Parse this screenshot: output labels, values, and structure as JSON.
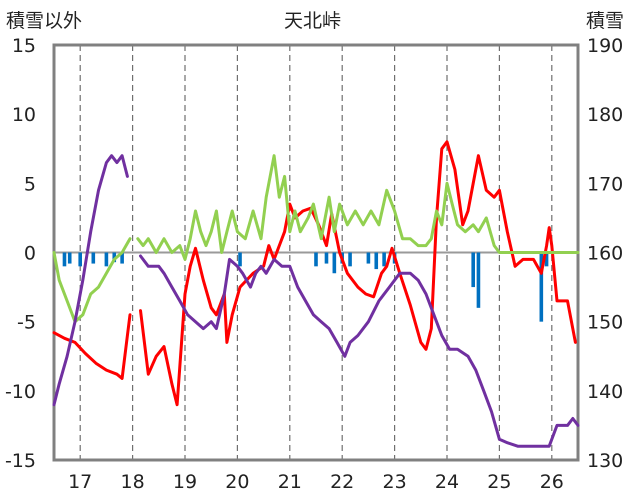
{
  "chart_data": {
    "type": "line",
    "title": "天北峠",
    "y_left_label": "積雪以外",
    "y_right_label": "積雪",
    "x_ticks": [
      "17",
      "18",
      "19",
      "20",
      "21",
      "22",
      "23",
      "24",
      "25",
      "26"
    ],
    "x_range": [
      16.5,
      26.5
    ],
    "y_left_ticks": [
      "15",
      "10",
      "5",
      "0",
      "-5",
      "-10",
      "-15"
    ],
    "y_left_range": [
      -15,
      15
    ],
    "y_right_ticks": [
      "190",
      "180",
      "170",
      "160",
      "150",
      "140",
      "130"
    ],
    "y_right_range": [
      130,
      190
    ],
    "grid": {
      "vertical": "dashed",
      "horizontal": "none"
    },
    "colors": {
      "red": "#ff0000",
      "green": "#92d050",
      "purple": "#7030a0",
      "blue": "#0070c0",
      "frame": "#808080"
    },
    "series": [
      {
        "color": "red",
        "axis": "left",
        "points": [
          [
            16.5,
            -5.8
          ],
          [
            16.7,
            -6.2
          ],
          [
            16.9,
            -6.5
          ],
          [
            17.1,
            -7.3
          ],
          [
            17.3,
            -8.0
          ],
          [
            17.5,
            -8.5
          ],
          [
            17.7,
            -8.8
          ],
          [
            17.8,
            -9.1
          ],
          [
            17.9,
            -6.0
          ],
          [
            17.95,
            -4.5
          ],
          null,
          [
            18.15,
            -4.2
          ],
          [
            18.3,
            -8.8
          ],
          [
            18.45,
            -7.5
          ],
          [
            18.6,
            -6.8
          ],
          [
            18.75,
            -9.5
          ],
          [
            18.85,
            -11.0
          ],
          [
            19.0,
            -3.0
          ],
          [
            19.1,
            -1.0
          ],
          [
            19.2,
            0.3
          ],
          [
            19.35,
            -2.0
          ],
          [
            19.5,
            -4.0
          ],
          [
            19.6,
            -4.5
          ],
          [
            19.75,
            -3.0
          ],
          [
            19.8,
            -6.5
          ],
          [
            19.9,
            -4.5
          ],
          [
            20.05,
            -2.5
          ],
          [
            20.3,
            -1.5
          ],
          [
            20.5,
            -1.0
          ],
          [
            20.6,
            0.5
          ],
          [
            20.7,
            -0.5
          ],
          [
            20.8,
            0.5
          ],
          [
            20.9,
            1.5
          ],
          [
            21.0,
            3.5
          ],
          [
            21.1,
            2.5
          ],
          [
            21.25,
            3.0
          ],
          [
            21.4,
            3.2
          ],
          [
            21.55,
            2.0
          ],
          [
            21.7,
            0.5
          ],
          [
            21.8,
            2.8
          ],
          [
            21.95,
            0.0
          ],
          [
            22.1,
            -1.5
          ],
          [
            22.3,
            -2.5
          ],
          [
            22.45,
            -3.0
          ],
          [
            22.6,
            -3.2
          ],
          [
            22.75,
            -1.5
          ],
          [
            22.85,
            -1.0
          ],
          [
            22.95,
            0.3
          ],
          [
            23.1,
            -1.5
          ],
          [
            23.3,
            -3.8
          ],
          [
            23.5,
            -6.5
          ],
          [
            23.6,
            -7.0
          ],
          [
            23.7,
            -5.5
          ],
          [
            23.8,
            2.5
          ],
          [
            23.9,
            7.5
          ],
          [
            24.0,
            8.0
          ],
          [
            24.15,
            6.0
          ],
          [
            24.3,
            2.0
          ],
          [
            24.4,
            3.0
          ],
          [
            24.5,
            5.0
          ],
          [
            24.6,
            7.0
          ],
          [
            24.75,
            4.5
          ],
          [
            24.9,
            4.0
          ],
          [
            25.0,
            4.5
          ],
          [
            25.15,
            1.5
          ],
          [
            25.3,
            -1.0
          ],
          [
            25.45,
            -0.5
          ],
          [
            25.65,
            -0.5
          ],
          [
            25.8,
            -1.5
          ],
          [
            25.9,
            0.5
          ],
          [
            25.95,
            1.8
          ],
          [
            26.0,
            0.5
          ],
          [
            26.1,
            -3.5
          ],
          [
            26.3,
            -3.5
          ],
          [
            26.45,
            -6.5
          ]
        ]
      },
      {
        "color": "green",
        "axis": "left",
        "points": [
          [
            16.5,
            0.0
          ],
          [
            16.6,
            -2.0
          ],
          [
            16.75,
            -3.5
          ],
          [
            16.9,
            -5.0
          ],
          [
            17.05,
            -4.5
          ],
          [
            17.2,
            -3.0
          ],
          [
            17.35,
            -2.5
          ],
          [
            17.5,
            -1.5
          ],
          [
            17.65,
            -0.5
          ],
          [
            17.8,
            0.0
          ],
          [
            17.95,
            1.0
          ],
          null,
          [
            18.1,
            1.0
          ],
          [
            18.2,
            0.5
          ],
          [
            18.3,
            1.0
          ],
          [
            18.45,
            0.0
          ],
          [
            18.6,
            1.0
          ],
          [
            18.75,
            0.0
          ],
          [
            18.9,
            0.5
          ],
          [
            19.0,
            -0.5
          ],
          [
            19.1,
            1.0
          ],
          [
            19.2,
            3.0
          ],
          [
            19.3,
            1.5
          ],
          [
            19.4,
            0.5
          ],
          [
            19.5,
            1.5
          ],
          [
            19.6,
            3.0
          ],
          [
            19.7,
            0.0
          ],
          [
            19.8,
            1.5
          ],
          [
            19.9,
            3.0
          ],
          [
            20.0,
            1.5
          ],
          [
            20.15,
            1.0
          ],
          [
            20.3,
            3.0
          ],
          [
            20.45,
            1.0
          ],
          [
            20.55,
            4.0
          ],
          [
            20.7,
            7.0
          ],
          [
            20.8,
            4.0
          ],
          [
            20.9,
            5.5
          ],
          [
            21.0,
            1.5
          ],
          [
            21.1,
            3.0
          ],
          [
            21.2,
            1.5
          ],
          [
            21.35,
            2.5
          ],
          [
            21.45,
            3.5
          ],
          [
            21.6,
            1.0
          ],
          [
            21.75,
            4.0
          ],
          [
            21.85,
            1.5
          ],
          [
            21.95,
            3.5
          ],
          [
            22.1,
            2.0
          ],
          [
            22.25,
            3.0
          ],
          [
            22.4,
            2.0
          ],
          [
            22.55,
            3.0
          ],
          [
            22.7,
            2.0
          ],
          [
            22.85,
            4.5
          ],
          [
            23.0,
            3.0
          ],
          [
            23.15,
            1.0
          ],
          [
            23.3,
            1.0
          ],
          [
            23.45,
            0.5
          ],
          [
            23.6,
            0.5
          ],
          [
            23.7,
            1.0
          ],
          [
            23.8,
            3.0
          ],
          [
            23.9,
            2.0
          ],
          [
            24.0,
            5.0
          ],
          [
            24.1,
            3.5
          ],
          [
            24.2,
            2.0
          ],
          [
            24.35,
            1.5
          ],
          [
            24.5,
            2.0
          ],
          [
            24.6,
            1.5
          ],
          [
            24.75,
            2.5
          ],
          [
            24.9,
            0.5
          ],
          [
            25.0,
            0.0
          ],
          [
            25.15,
            0.0
          ],
          [
            25.3,
            0.0
          ],
          [
            25.5,
            0.0
          ],
          [
            25.7,
            0.0
          ],
          [
            25.85,
            0.0
          ],
          [
            26.0,
            0.0
          ],
          [
            26.15,
            0.0
          ],
          [
            26.3,
            0.0
          ],
          [
            26.5,
            0.0
          ]
        ]
      },
      {
        "color": "purple",
        "axis": "right",
        "points": [
          [
            16.5,
            138.0
          ],
          [
            16.6,
            141.0
          ],
          [
            16.75,
            145.0
          ],
          [
            16.9,
            150.0
          ],
          [
            17.05,
            156.0
          ],
          [
            17.2,
            163.0
          ],
          [
            17.35,
            169.0
          ],
          [
            17.5,
            173.0
          ],
          [
            17.6,
            174.0
          ],
          [
            17.7,
            173.0
          ],
          [
            17.8,
            174.0
          ],
          [
            17.9,
            171.0
          ],
          null,
          [
            18.15,
            159.5
          ],
          [
            18.3,
            158.0
          ],
          [
            18.5,
            158.0
          ],
          [
            18.6,
            157.0
          ],
          [
            18.75,
            155.0
          ],
          [
            18.9,
            153.0
          ],
          [
            19.05,
            151.0
          ],
          [
            19.2,
            150.0
          ],
          [
            19.35,
            149.0
          ],
          [
            19.5,
            150.0
          ],
          [
            19.6,
            149.0
          ],
          [
            19.75,
            154.0
          ],
          [
            19.85,
            159.0
          ],
          [
            20.0,
            158.0
          ],
          [
            20.1,
            157.0
          ],
          [
            20.25,
            155.0
          ],
          [
            20.35,
            157.0
          ],
          [
            20.45,
            158.0
          ],
          [
            20.55,
            157.0
          ],
          [
            20.7,
            159.0
          ],
          [
            20.85,
            158.0
          ],
          [
            21.0,
            158.0
          ],
          [
            21.15,
            155.0
          ],
          [
            21.3,
            153.0
          ],
          [
            21.45,
            151.0
          ],
          [
            21.6,
            150.0
          ],
          [
            21.75,
            149.0
          ],
          [
            21.9,
            147.0
          ],
          [
            22.05,
            145.0
          ],
          [
            22.15,
            147.0
          ],
          [
            22.3,
            148.0
          ],
          [
            22.5,
            150.0
          ],
          [
            22.7,
            153.0
          ],
          [
            22.9,
            155.0
          ],
          [
            23.1,
            157.0
          ],
          [
            23.3,
            157.0
          ],
          [
            23.45,
            156.0
          ],
          [
            23.6,
            154.0
          ],
          [
            23.75,
            151.0
          ],
          [
            23.9,
            148.0
          ],
          [
            24.05,
            146.0
          ],
          [
            24.2,
            146.0
          ],
          [
            24.4,
            145.0
          ],
          [
            24.55,
            143.0
          ],
          [
            24.7,
            140.0
          ],
          [
            24.85,
            137.0
          ],
          [
            25.0,
            133.0
          ],
          [
            25.15,
            132.5
          ],
          [
            25.35,
            132.0
          ],
          [
            25.55,
            132.0
          ],
          [
            25.75,
            132.0
          ],
          [
            25.95,
            132.0
          ],
          [
            26.1,
            135.0
          ],
          [
            26.3,
            135.0
          ],
          [
            26.4,
            136.0
          ],
          [
            26.5,
            135.0
          ]
        ]
      }
    ],
    "bars": {
      "color": "blue",
      "axis": "left",
      "values": [
        [
          16.7,
          -1.0
        ],
        [
          16.8,
          -0.8
        ],
        [
          17.0,
          -1.0
        ],
        [
          17.25,
          -0.8
        ],
        [
          17.5,
          -1.0
        ],
        [
          17.65,
          -0.7
        ],
        [
          17.8,
          -0.8
        ],
        [
          20.05,
          -1.0
        ],
        [
          21.5,
          -1.0
        ],
        [
          21.7,
          -0.8
        ],
        [
          21.85,
          -1.5
        ],
        [
          22.0,
          -0.8
        ],
        [
          22.15,
          -1.0
        ],
        [
          22.5,
          -0.8
        ],
        [
          22.65,
          -1.2
        ],
        [
          22.8,
          -1.0
        ],
        [
          23.0,
          -0.8
        ],
        [
          24.5,
          -2.5
        ],
        [
          24.6,
          -4.0
        ],
        [
          25.8,
          -5.0
        ],
        [
          25.9,
          -1.0
        ]
      ]
    }
  }
}
